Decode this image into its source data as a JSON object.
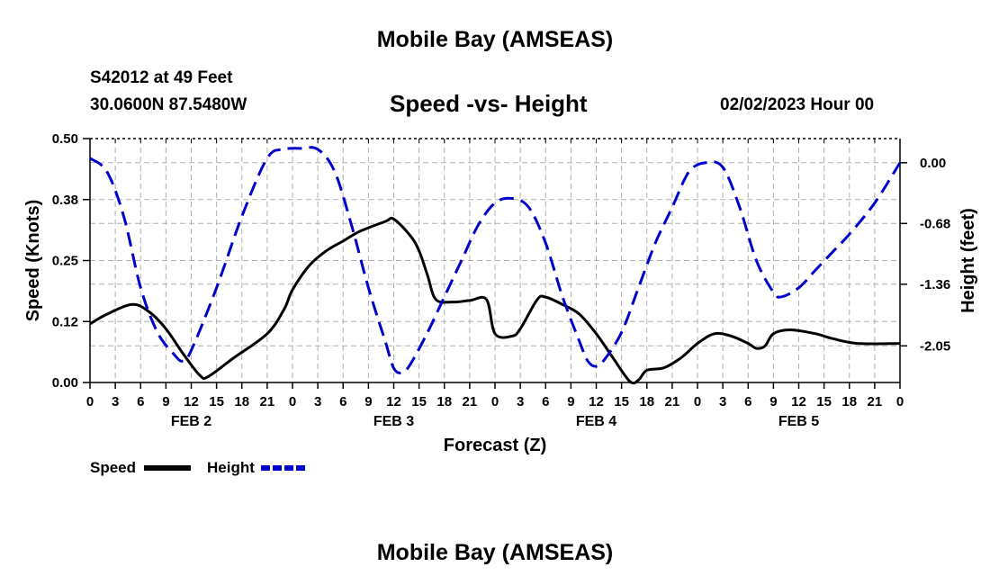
{
  "header": {
    "title": "Mobile Bay (AMSEAS)",
    "station": "S42012 at 49 Feet",
    "coordinates": "30.0600N  87.5480W",
    "subtitle": "Speed -vs- Height",
    "datetime": "02/02/2023 Hour 00"
  },
  "footer": {
    "title": "Mobile Bay (AMSEAS)"
  },
  "chart_data": {
    "type": "line",
    "xlabel": "Forecast (Z)",
    "ylabel_left": "Speed (Knots)",
    "ylabel_right": "Height (feet)",
    "x_range_hours": [
      0,
      96
    ],
    "y_left_range": [
      0,
      0.5
    ],
    "y_left_ticks": [
      "0.00",
      "0.12",
      "0.25",
      "0.38",
      "0.50"
    ],
    "y_left_tick_values": [
      0,
      0.125,
      0.25,
      0.375,
      0.5
    ],
    "y_right_range": [
      -2.46,
      0.27
    ],
    "y_right_ticks": [
      "0.00",
      "-0.68",
      "-1.36",
      "-2.05"
    ],
    "y_right_tick_values": [
      0,
      -0.68,
      -1.36,
      -2.05
    ],
    "x_tick_labels": [
      "0",
      "3",
      "6",
      "9",
      "12",
      "15",
      "18",
      "21",
      "0",
      "3",
      "6",
      "9",
      "12",
      "15",
      "18",
      "21",
      "0",
      "3",
      "6",
      "9",
      "12",
      "15",
      "18",
      "21",
      "0",
      "3",
      "6",
      "9",
      "12",
      "15",
      "18",
      "21",
      "0"
    ],
    "day_labels": [
      {
        "label": "FEB 2",
        "hour": 12
      },
      {
        "label": "FEB 3",
        "hour": 36
      },
      {
        "label": "FEB 4",
        "hour": 60
      },
      {
        "label": "FEB 5",
        "hour": 84
      }
    ],
    "grid": true,
    "legend_position": "bottom-left",
    "series": [
      {
        "name": "Speed",
        "axis": "left",
        "color": "#000000",
        "dash": "solid",
        "points": [
          [
            0,
            0.12
          ],
          [
            2,
            0.14
          ],
          [
            5,
            0.16
          ],
          [
            7,
            0.145
          ],
          [
            9,
            0.11
          ],
          [
            11,
            0.06
          ],
          [
            13,
            0.015
          ],
          [
            14,
            0.012
          ],
          [
            17,
            0.05
          ],
          [
            21,
            0.1
          ],
          [
            23,
            0.15
          ],
          [
            24,
            0.19
          ],
          [
            26,
            0.24
          ],
          [
            28,
            0.27
          ],
          [
            30,
            0.29
          ],
          [
            32,
            0.31
          ],
          [
            35,
            0.33
          ],
          [
            36,
            0.335
          ],
          [
            38,
            0.3
          ],
          [
            39,
            0.27
          ],
          [
            40,
            0.22
          ],
          [
            41,
            0.17
          ],
          [
            43,
            0.165
          ],
          [
            45,
            0.168
          ],
          [
            47,
            0.17
          ],
          [
            48,
            0.1
          ],
          [
            50,
            0.095
          ],
          [
            51,
            0.11
          ],
          [
            53,
            0.17
          ],
          [
            54,
            0.175
          ],
          [
            56,
            0.16
          ],
          [
            58,
            0.14
          ],
          [
            60,
            0.1
          ],
          [
            62,
            0.05
          ],
          [
            64,
            0.002
          ],
          [
            65,
            0.005
          ],
          [
            66,
            0.025
          ],
          [
            68,
            0.03
          ],
          [
            70,
            0.05
          ],
          [
            72,
            0.08
          ],
          [
            74,
            0.1
          ],
          [
            76,
            0.095
          ],
          [
            78,
            0.08
          ],
          [
            79,
            0.07
          ],
          [
            80,
            0.075
          ],
          [
            81,
            0.1
          ],
          [
            83,
            0.108
          ],
          [
            86,
            0.1
          ],
          [
            88,
            0.09
          ],
          [
            91,
            0.08
          ],
          [
            96,
            0.08
          ]
        ]
      },
      {
        "name": "Height",
        "axis": "right",
        "color": "#0000cc",
        "dash": "dashed",
        "points": [
          [
            0,
            0.05
          ],
          [
            2,
            -0.1
          ],
          [
            4,
            -0.6
          ],
          [
            6,
            -1.4
          ],
          [
            8,
            -1.9
          ],
          [
            10,
            -2.15
          ],
          [
            11,
            -2.22
          ],
          [
            12,
            -2.1
          ],
          [
            15,
            -1.4
          ],
          [
            18,
            -0.6
          ],
          [
            21,
            0.05
          ],
          [
            23,
            0.15
          ],
          [
            25,
            0.16
          ],
          [
            27,
            0.15
          ],
          [
            29,
            -0.1
          ],
          [
            31,
            -0.7
          ],
          [
            33,
            -1.4
          ],
          [
            35,
            -2.0
          ],
          [
            36,
            -2.3
          ],
          [
            37,
            -2.35
          ],
          [
            38,
            -2.25
          ],
          [
            40,
            -1.9
          ],
          [
            42,
            -1.5
          ],
          [
            44,
            -1.1
          ],
          [
            46,
            -0.7
          ],
          [
            48,
            -0.45
          ],
          [
            50,
            -0.4
          ],
          [
            52,
            -0.5
          ],
          [
            54,
            -0.9
          ],
          [
            56,
            -1.5
          ],
          [
            58,
            -2.0
          ],
          [
            59,
            -2.22
          ],
          [
            60,
            -2.28
          ],
          [
            61,
            -2.2
          ],
          [
            63,
            -1.9
          ],
          [
            65,
            -1.4
          ],
          [
            67,
            -0.9
          ],
          [
            69,
            -0.5
          ],
          [
            71,
            -0.1
          ],
          [
            73,
            0.0
          ],
          [
            75,
            -0.05
          ],
          [
            77,
            -0.5
          ],
          [
            79,
            -1.1
          ],
          [
            81,
            -1.45
          ],
          [
            82,
            -1.5
          ],
          [
            84,
            -1.4
          ],
          [
            86,
            -1.2
          ],
          [
            88,
            -1.0
          ],
          [
            90,
            -0.8
          ],
          [
            93,
            -0.45
          ],
          [
            96,
            0.0
          ]
        ]
      }
    ]
  },
  "legend": [
    {
      "label": "Speed",
      "color": "#000000"
    },
    {
      "label": "Height",
      "color": "#0000cc"
    }
  ]
}
